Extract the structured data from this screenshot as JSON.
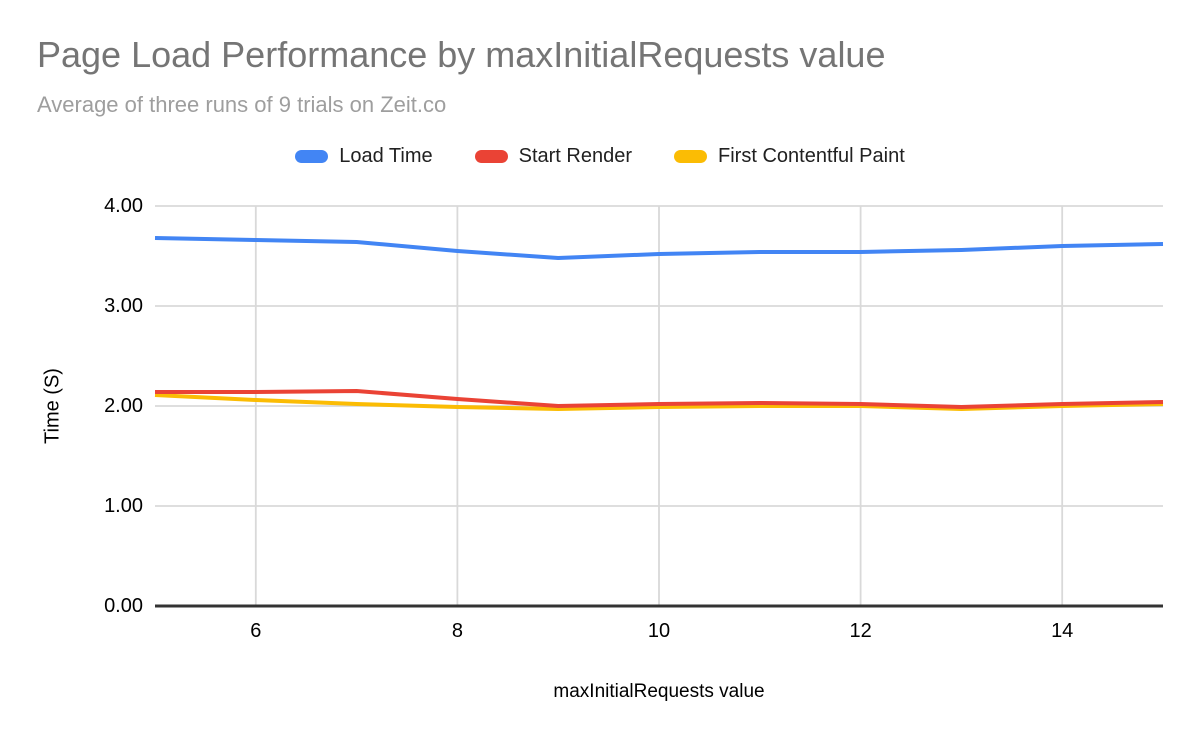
{
  "chart_data": {
    "type": "line",
    "title": "Page Load Performance by maxInitialRequests value",
    "subtitle": "Average of three runs of 9 trials on Zeit.co",
    "xlabel": "maxInitialRequests value",
    "ylabel": "Time (S)",
    "xlim": [
      5,
      15
    ],
    "ylim": [
      0,
      4
    ],
    "grid": true,
    "legend_position": "top",
    "x": [
      5,
      6,
      7,
      8,
      9,
      10,
      11,
      12,
      13,
      14,
      15
    ],
    "series": [
      {
        "name": "Load Time",
        "color": "#4285F4",
        "values": [
          3.68,
          3.66,
          3.64,
          3.55,
          3.48,
          3.52,
          3.54,
          3.54,
          3.56,
          3.6,
          3.62
        ]
      },
      {
        "name": "Start Render",
        "color": "#EA4335",
        "values": [
          2.14,
          2.14,
          2.15,
          2.07,
          2.0,
          2.02,
          2.03,
          2.02,
          1.99,
          2.02,
          2.04
        ]
      },
      {
        "name": "First Contentful Paint",
        "color": "#FBBC04",
        "values": [
          2.11,
          2.06,
          2.02,
          1.99,
          1.97,
          1.99,
          2.0,
          2.0,
          1.97,
          2.0,
          2.02
        ]
      }
    ],
    "render_order": [
      0,
      2,
      1
    ],
    "xticks": [
      {
        "label": "6",
        "value": 6
      },
      {
        "label": "8",
        "value": 8
      },
      {
        "label": "10",
        "value": 10
      },
      {
        "label": "12",
        "value": 12
      },
      {
        "label": "14",
        "value": 14
      }
    ],
    "yticks": [
      {
        "label": "0.00",
        "value": 0
      },
      {
        "label": "1.00",
        "value": 1
      },
      {
        "label": "2.00",
        "value": 2
      },
      {
        "label": "3.00",
        "value": 3
      },
      {
        "label": "4.00",
        "value": 4
      }
    ]
  },
  "colors": {
    "title_text": "#757575",
    "subtitle_text": "#9e9e9e",
    "legend_text": "#212121",
    "tick_text": "#000000",
    "gridline": "#d9d9d9",
    "axis_baseline": "#333333",
    "background": "#ffffff"
  }
}
